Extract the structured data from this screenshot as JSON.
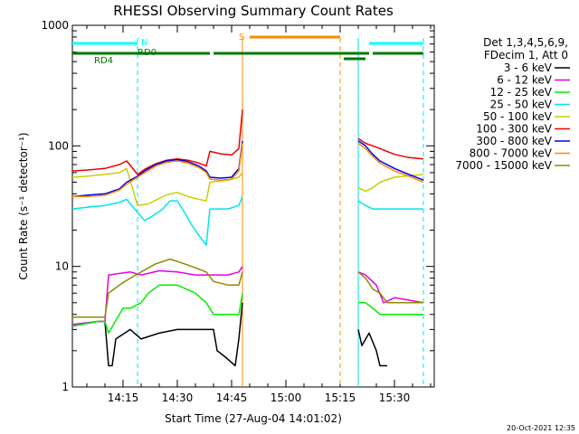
{
  "chart_data": {
    "type": "line",
    "title": "RHESSI Observing Summary Count Rates",
    "xlabel": "Start Time (27-Aug-04 14:01:02)",
    "ylabel": "Count Rate (s⁻¹ detector⁻¹)",
    "y_scale": "log",
    "ylim": [
      1,
      1000
    ],
    "xlim": [
      "14:01",
      "15:41"
    ],
    "x_ticks": [
      "14:15",
      "14:30",
      "14:45",
      "15:00",
      "15:15",
      "15:30"
    ],
    "y_ticks": [
      "1",
      "10",
      "100",
      "1000"
    ],
    "legend_position": "top-right",
    "legend_header": [
      "Det 1,3,4,5,6,9,",
      "FDecim 1, Att 0"
    ],
    "timestamp": "20-Oct-2021 12:35",
    "colors": {
      "3 - 6 keV": "#000000",
      "6 - 12 keV": "#e600e6",
      "12 - 25 keV": "#00ee00",
      "25 - 50 keV": "#00e5ee",
      "50 - 100 keV": "#cdcd00",
      "100 - 300 keV": "#ee0000",
      "300 - 800 keV": "#0000ee",
      "800 - 7000 keV": "#ff8800",
      "7000 - 15000 keV": "#8b8b00",
      "N": "#00ffff",
      "RD0": "#007700",
      "RD4": "#007700",
      "S": "#ff8800"
    },
    "flag_labels": {
      "N": "N",
      "RD0": "RD0",
      "RD4": "RD4",
      "S": "S"
    },
    "flags": {
      "N": [
        [
          "14:01",
          "14:19"
        ],
        [
          "15:23",
          "15:38"
        ]
      ],
      "RD0": [
        [
          "14:01",
          "14:39"
        ],
        [
          "14:40",
          "15:16"
        ],
        [
          "15:16",
          "15:23"
        ],
        [
          "15:24",
          "15:38"
        ]
      ],
      "S": [
        [
          "14:50",
          "15:15"
        ]
      ]
    },
    "event_lines": [
      {
        "time": "14:19",
        "style": "dashed",
        "color": "#00e5ee"
      },
      {
        "time": "14:48",
        "style": "solid",
        "color": "#ff8800"
      },
      {
        "time": "15:15",
        "style": "dashed",
        "color": "#ff8800"
      },
      {
        "time": "15:20",
        "style": "solid",
        "color": "#00e5ee"
      },
      {
        "time": "15:38",
        "style": "dashed",
        "color": "#00e5ee"
      }
    ],
    "series": [
      {
        "name": "3 - 6 keV",
        "points": [
          [
            "14:01",
            3.2
          ],
          [
            "14:08",
            3.5
          ],
          [
            "14:10",
            3.5
          ],
          [
            "14:11",
            1.5
          ],
          [
            "14:12",
            1.5
          ],
          [
            "14:13",
            2.5
          ],
          [
            "14:17",
            3.0
          ],
          [
            "14:20",
            2.5
          ],
          [
            "14:25",
            2.8
          ],
          [
            "14:30",
            3.0
          ],
          [
            "14:35",
            3.0
          ],
          [
            "14:40",
            3.0
          ],
          [
            "14:41",
            2.0
          ],
          [
            "14:43",
            1.8
          ],
          [
            "14:46",
            1.5
          ],
          [
            "14:47",
            2.5
          ],
          [
            "14:48",
            5.0
          ],
          [
            "15:20",
            3.0
          ],
          [
            "15:21",
            2.2
          ],
          [
            "15:23",
            2.8
          ],
          [
            "15:25",
            2.0
          ],
          [
            "15:26",
            1.5
          ],
          [
            "15:28",
            1.5
          ]
        ]
      },
      {
        "name": "6 - 12 keV",
        "points": [
          [
            "14:01",
            3.3
          ],
          [
            "14:08",
            3.5
          ],
          [
            "14:10",
            3.5
          ],
          [
            "14:11",
            8.5
          ],
          [
            "14:17",
            9.0
          ],
          [
            "14:20",
            8.5
          ],
          [
            "14:25",
            9.2
          ],
          [
            "14:30",
            9.0
          ],
          [
            "14:35",
            8.5
          ],
          [
            "14:40",
            8.5
          ],
          [
            "14:44",
            8.5
          ],
          [
            "14:47",
            9.0
          ],
          [
            "14:48",
            10.0
          ],
          [
            "15:20",
            9.0
          ],
          [
            "15:22",
            8.5
          ],
          [
            "15:25",
            7.0
          ],
          [
            "15:27",
            5.0
          ],
          [
            "15:30",
            5.5
          ],
          [
            "15:38",
            5.0
          ]
        ]
      },
      {
        "name": "12 - 25 keV",
        "points": [
          [
            "14:01",
            3.2
          ],
          [
            "14:08",
            3.5
          ],
          [
            "14:10",
            3.5
          ],
          [
            "14:11",
            2.8
          ],
          [
            "14:15",
            4.5
          ],
          [
            "14:17",
            4.5
          ],
          [
            "14:20",
            5.0
          ],
          [
            "14:22",
            6.0
          ],
          [
            "14:25",
            7.0
          ],
          [
            "14:30",
            7.0
          ],
          [
            "14:35",
            6.0
          ],
          [
            "14:38",
            5.0
          ],
          [
            "14:40",
            4.0
          ],
          [
            "14:44",
            4.0
          ],
          [
            "14:47",
            4.0
          ],
          [
            "14:48",
            6.0
          ],
          [
            "15:20",
            5.0
          ],
          [
            "15:22",
            5.0
          ],
          [
            "15:24",
            4.5
          ],
          [
            "15:26",
            4.0
          ],
          [
            "15:28",
            4.0
          ],
          [
            "15:38",
            4.0
          ]
        ]
      },
      {
        "name": "25 - 50 keV",
        "points": [
          [
            "14:01",
            30
          ],
          [
            "14:05",
            31
          ],
          [
            "14:10",
            32
          ],
          [
            "14:14",
            34
          ],
          [
            "14:16",
            36
          ],
          [
            "14:19",
            28
          ],
          [
            "14:21",
            24
          ],
          [
            "14:23",
            26
          ],
          [
            "14:26",
            30
          ],
          [
            "14:28",
            35
          ],
          [
            "14:30",
            35
          ],
          [
            "14:32",
            28
          ],
          [
            "14:34",
            22
          ],
          [
            "14:36",
            18
          ],
          [
            "14:38",
            15
          ],
          [
            "14:39",
            30
          ],
          [
            "14:44",
            30
          ],
          [
            "14:47",
            32
          ],
          [
            "14:48",
            38
          ],
          [
            "15:20",
            35
          ],
          [
            "15:22",
            32
          ],
          [
            "15:24",
            30
          ],
          [
            "15:26",
            30
          ],
          [
            "15:30",
            30
          ],
          [
            "15:38",
            30
          ]
        ]
      },
      {
        "name": "50 - 100 keV",
        "points": [
          [
            "14:01",
            55
          ],
          [
            "14:05",
            56
          ],
          [
            "14:10",
            58
          ],
          [
            "14:14",
            60
          ],
          [
            "14:16",
            65
          ],
          [
            "14:19",
            32
          ],
          [
            "14:22",
            33
          ],
          [
            "14:26",
            38
          ],
          [
            "14:28",
            40
          ],
          [
            "14:30",
            41
          ],
          [
            "14:33",
            38
          ],
          [
            "14:36",
            36
          ],
          [
            "14:38",
            35
          ],
          [
            "14:39",
            50
          ],
          [
            "14:44",
            52
          ],
          [
            "14:47",
            55
          ],
          [
            "14:48",
            60
          ],
          [
            "15:20",
            45
          ],
          [
            "15:22",
            42
          ],
          [
            "15:24",
            45
          ],
          [
            "15:26",
            50
          ],
          [
            "15:30",
            55
          ],
          [
            "15:38",
            58
          ]
        ]
      },
      {
        "name": "100 - 300 keV",
        "points": [
          [
            "14:01",
            62
          ],
          [
            "14:05",
            63
          ],
          [
            "14:10",
            65
          ],
          [
            "14:14",
            70
          ],
          [
            "14:16",
            75
          ],
          [
            "14:19",
            58
          ],
          [
            "14:21",
            64
          ],
          [
            "14:24",
            71
          ],
          [
            "14:27",
            76
          ],
          [
            "14:30",
            78
          ],
          [
            "14:33",
            76
          ],
          [
            "14:36",
            72
          ],
          [
            "14:38",
            68
          ],
          [
            "14:39",
            90
          ],
          [
            "14:42",
            86
          ],
          [
            "14:45",
            84
          ],
          [
            "14:47",
            95
          ],
          [
            "14:48",
            200
          ],
          [
            "15:20",
            115
          ],
          [
            "15:22",
            105
          ],
          [
            "15:24",
            100
          ],
          [
            "15:26",
            95
          ],
          [
            "15:30",
            85
          ],
          [
            "15:34",
            80
          ],
          [
            "15:38",
            78
          ]
        ]
      },
      {
        "name": "300 - 800 keV",
        "points": [
          [
            "14:01",
            38
          ],
          [
            "14:05",
            39
          ],
          [
            "14:10",
            40
          ],
          [
            "14:14",
            44
          ],
          [
            "14:16",
            50
          ],
          [
            "14:19",
            56
          ],
          [
            "14:21",
            62
          ],
          [
            "14:24",
            70
          ],
          [
            "14:27",
            75
          ],
          [
            "14:30",
            77
          ],
          [
            "14:33",
            74
          ],
          [
            "14:36",
            68
          ],
          [
            "14:38",
            62
          ],
          [
            "14:39",
            55
          ],
          [
            "14:42",
            54
          ],
          [
            "14:45",
            55
          ],
          [
            "14:47",
            65
          ],
          [
            "14:48",
            110
          ],
          [
            "15:20",
            110
          ],
          [
            "15:22",
            100
          ],
          [
            "15:24",
            85
          ],
          [
            "15:26",
            75
          ],
          [
            "15:30",
            65
          ],
          [
            "15:34",
            58
          ],
          [
            "15:38",
            52
          ]
        ]
      },
      {
        "name": "800 - 7000 keV",
        "points": [
          [
            "14:01",
            38
          ],
          [
            "14:05",
            38
          ],
          [
            "14:10",
            39
          ],
          [
            "14:14",
            43
          ],
          [
            "14:16",
            48
          ],
          [
            "14:19",
            55
          ],
          [
            "14:21",
            60
          ],
          [
            "14:24",
            68
          ],
          [
            "14:27",
            73
          ],
          [
            "14:30",
            75
          ],
          [
            "14:33",
            72
          ],
          [
            "14:36",
            66
          ],
          [
            "14:38",
            60
          ],
          [
            "14:39",
            53
          ],
          [
            "14:42",
            52
          ],
          [
            "14:45",
            53
          ],
          [
            "14:47",
            62
          ],
          [
            "14:48",
            105
          ],
          [
            "15:20",
            105
          ],
          [
            "15:22",
            95
          ],
          [
            "15:24",
            82
          ],
          [
            "15:26",
            72
          ],
          [
            "15:30",
            62
          ],
          [
            "15:34",
            56
          ],
          [
            "15:38",
            50
          ]
        ]
      },
      {
        "name": "7000 - 15000 keV",
        "points": [
          [
            "14:01",
            3.8
          ],
          [
            "14:08",
            3.8
          ],
          [
            "14:10",
            3.8
          ],
          [
            "14:11",
            6.0
          ],
          [
            "14:14",
            7.0
          ],
          [
            "14:17",
            8.0
          ],
          [
            "14:20",
            9.0
          ],
          [
            "14:24",
            10.5
          ],
          [
            "14:28",
            11.5
          ],
          [
            "14:30",
            11.0
          ],
          [
            "14:34",
            10.0
          ],
          [
            "14:38",
            9.0
          ],
          [
            "14:40",
            7.5
          ],
          [
            "14:44",
            7.0
          ],
          [
            "14:47",
            7.0
          ],
          [
            "14:48",
            9.0
          ],
          [
            "15:20",
            9.0
          ],
          [
            "15:22",
            8.0
          ],
          [
            "15:24",
            6.5
          ],
          [
            "15:26",
            6.0
          ],
          [
            "15:28",
            5.0
          ],
          [
            "15:38",
            5.0
          ]
        ]
      }
    ]
  }
}
